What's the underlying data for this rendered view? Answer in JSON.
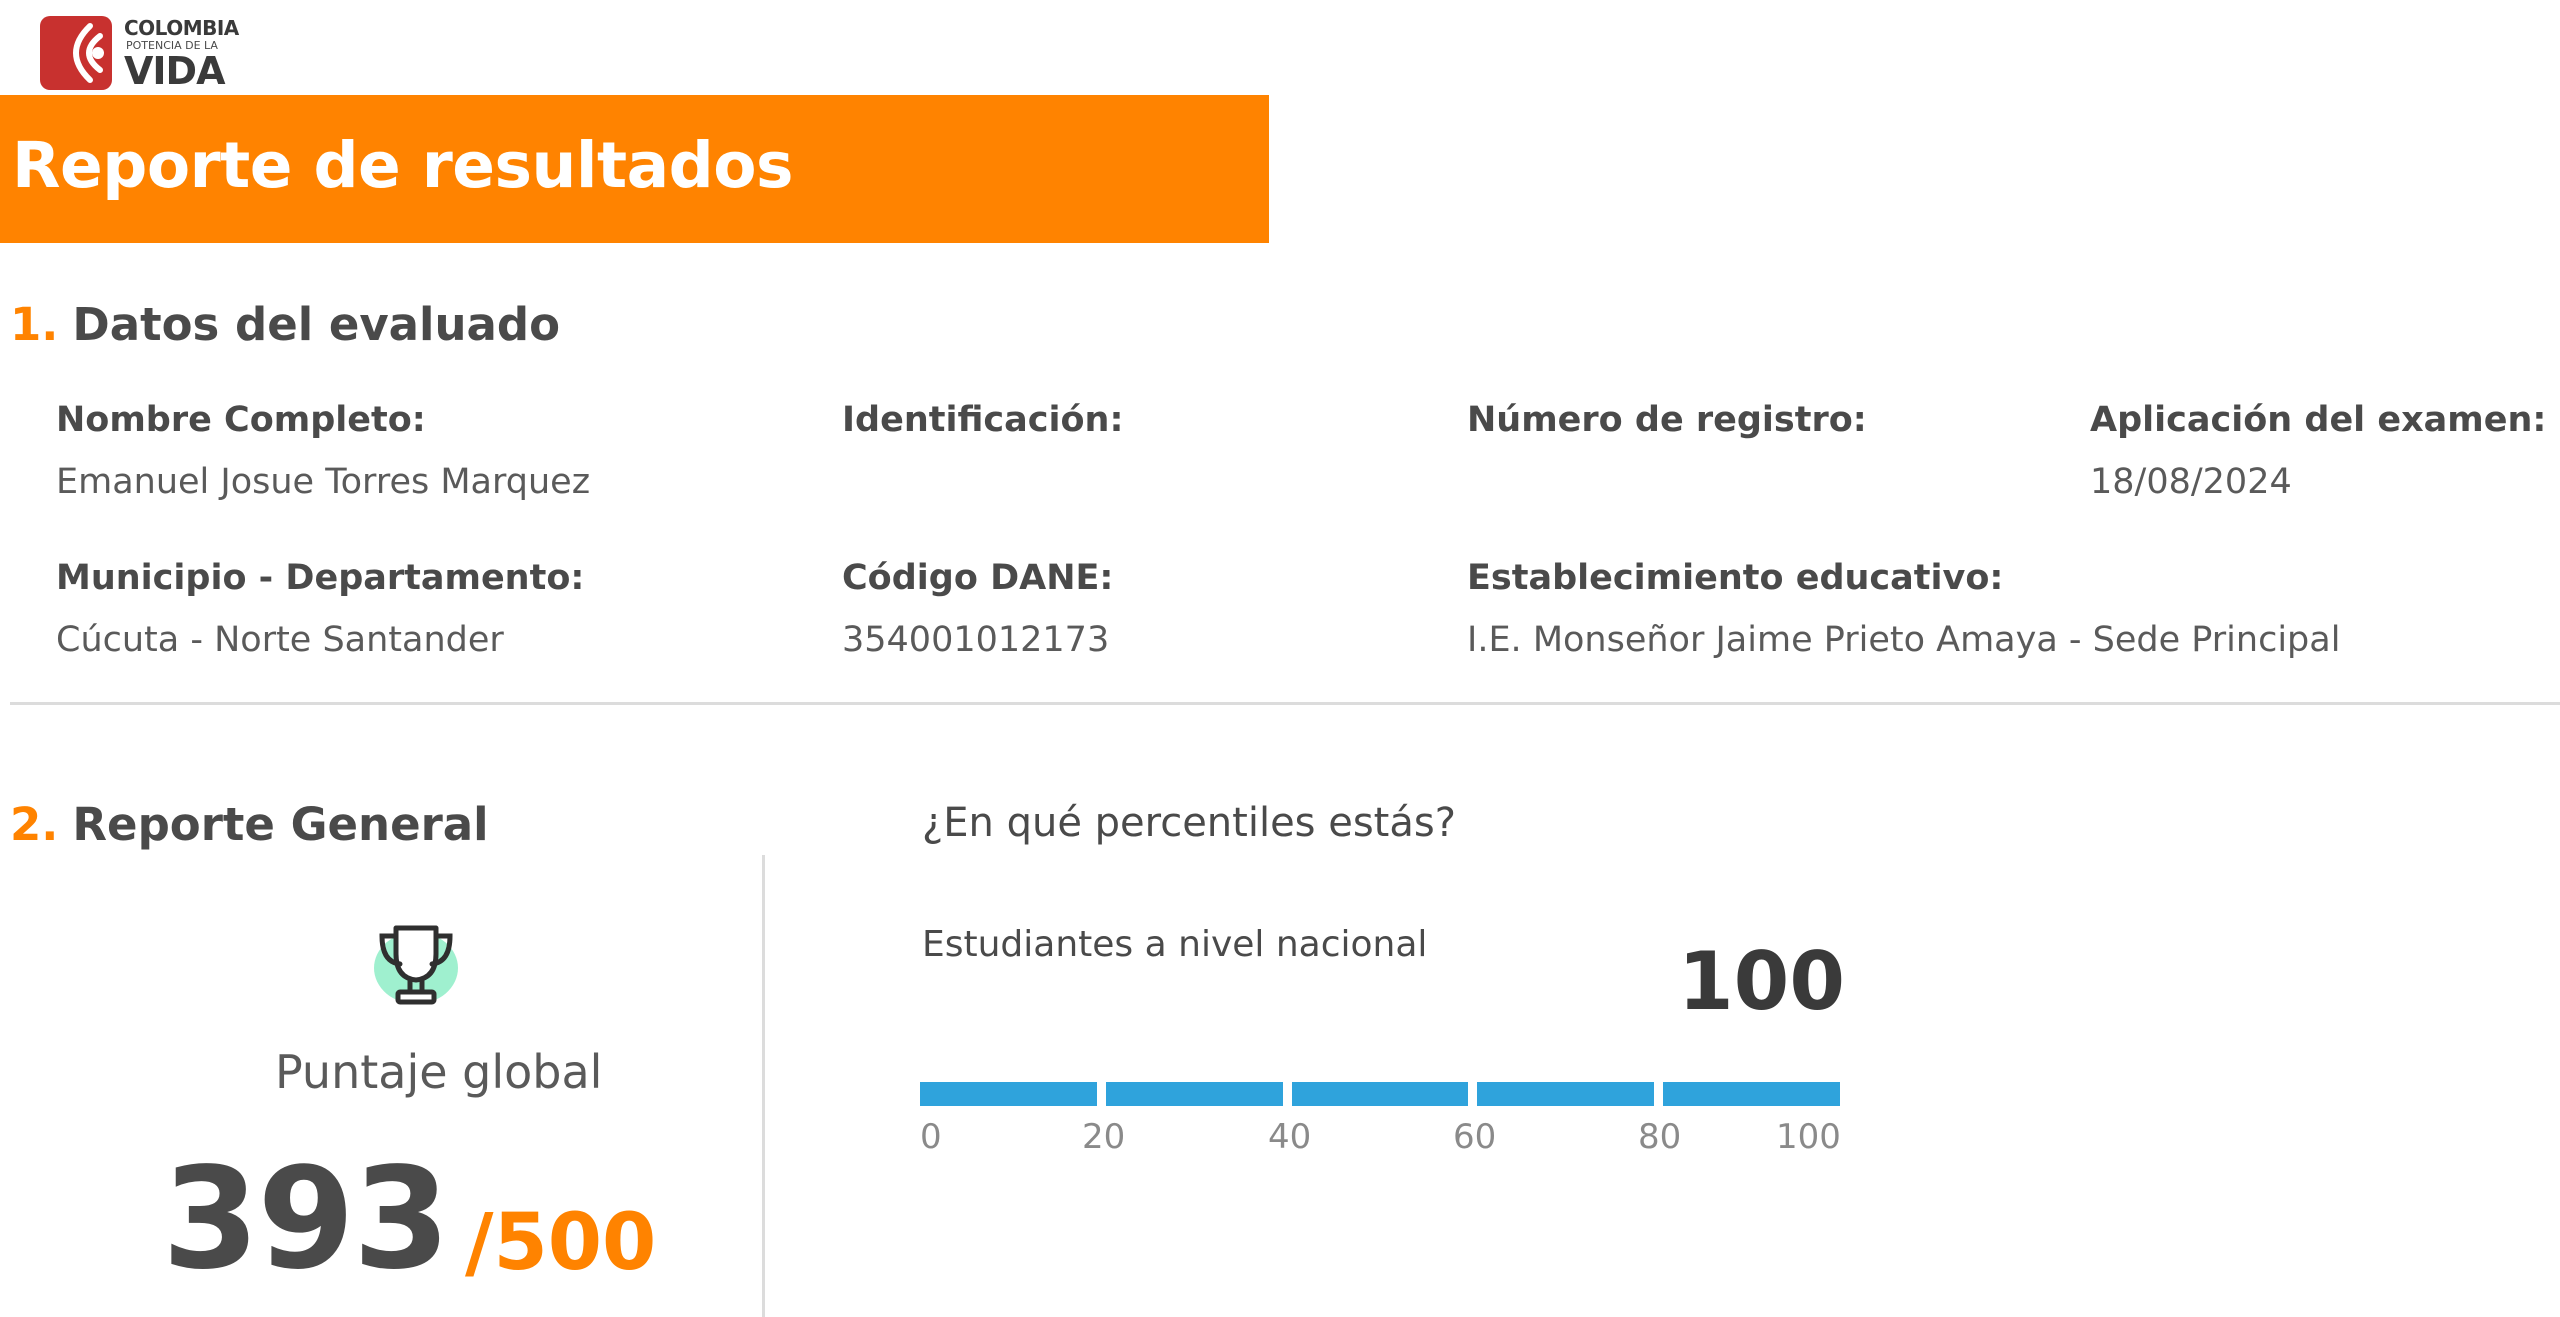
{
  "logo": {
    "line1": "COLOMBIA",
    "line2": "POTENCIA DE LA",
    "line3": "VIDA",
    "brand_color": "#c8312f"
  },
  "banner": {
    "title": "Reporte de resultados",
    "color": "#ff8300"
  },
  "section1": {
    "number": "1.",
    "title": "Datos del evaluado",
    "fields": {
      "nombre": {
        "label": "Nombre Completo:",
        "value": "Emanuel Josue Torres Marquez"
      },
      "identificacion": {
        "label": "Identificación:",
        "value": ""
      },
      "registro": {
        "label": "Número de registro:",
        "value": ""
      },
      "aplicacion": {
        "label": "Aplicación del examen:",
        "value": "18/08/2024"
      },
      "municipio": {
        "label": "Municipio - Departamento:",
        "value": "Cúcuta -  Norte Santander"
      },
      "dane": {
        "label": "Código DANE:",
        "value": "354001012173"
      },
      "establecimiento": {
        "label": "Establecimiento educativo:",
        "value": "I.E. Monseñor Jaime Prieto Amaya - Sede Principal"
      }
    }
  },
  "section2": {
    "number": "2.",
    "title": "Reporte General",
    "global": {
      "icon": "trophy-icon",
      "label": "Puntaje global",
      "score": "393",
      "max": "/500"
    },
    "percentiles": {
      "question": "¿En qué percentiles estás?",
      "group_label": "Estudiantes a nivel nacional",
      "value": "100",
      "value_fraction": 1.0,
      "bar_color": "#2fa3dc",
      "ticks": [
        "0",
        "20",
        "40",
        "60",
        "80",
        "100"
      ]
    }
  }
}
